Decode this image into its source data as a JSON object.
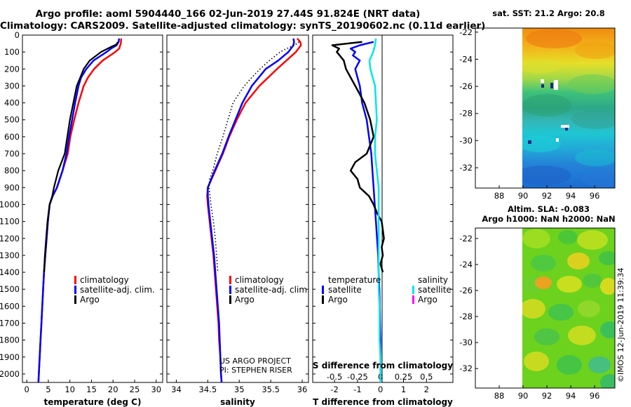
{
  "header": {
    "title_line1": "Argo profile: aoml 5904440_166 02-Jun-2019 27.44S 91.824E (NRT data)",
    "title_line2": "Climatology: CARS2009. Satellite-adjusted climatology: synTS_20190602.nc (0.11d earlier)"
  },
  "colors": {
    "climatology": "#ff0000",
    "satellite": "#0000ff",
    "argo": "#000000",
    "sal_satellite": "#00e5ee",
    "sal_argo": "#ff00ff"
  },
  "depth_axis": {
    "ylim": [
      0,
      2050
    ],
    "ticks": [
      0,
      100,
      200,
      300,
      400,
      500,
      600,
      700,
      800,
      900,
      1000,
      1100,
      1200,
      1300,
      1400,
      1500,
      1600,
      1700,
      1800,
      1900,
      2000
    ]
  },
  "chart_data": [
    {
      "type": "line",
      "title": "temperature",
      "xlabel": "temperature (deg C)",
      "xlim": [
        -1,
        31.5
      ],
      "xticks": [
        0,
        5,
        10,
        15,
        20,
        25,
        30
      ],
      "legend": [
        "climatology",
        "satellite-adj. clim.",
        "Argo"
      ],
      "series": [
        {
          "name": "climatology",
          "color": "#ff0000",
          "depth": [
            20,
            50,
            80,
            100,
            150,
            200,
            250,
            300,
            400,
            500,
            600,
            700,
            800,
            900,
            950,
            1000,
            1100,
            1200,
            1300,
            1400,
            1500,
            1600,
            1700,
            1800,
            1900,
            2000,
            2050
          ],
          "values": [
            21.9,
            21.8,
            21.4,
            20.5,
            17.6,
            15.6,
            14.2,
            13.2,
            12.0,
            11.0,
            10.1,
            9.5,
            8.3,
            7.0,
            6.0,
            5.3,
            4.9,
            4.6,
            4.3,
            4.0,
            3.8,
            3.6,
            3.4,
            3.2,
            3.0,
            2.8,
            2.7
          ]
        },
        {
          "name": "satellite-adj. clim.",
          "color": "#0000ff",
          "depth": [
            20,
            40,
            60,
            80,
            100,
            150,
            200,
            250,
            300,
            400,
            500,
            600,
            700,
            800,
            900,
            950,
            1000,
            1100,
            1200,
            1300,
            1400,
            1500,
            1600,
            1700,
            1800,
            1900,
            2000,
            2050
          ],
          "values": [
            21.4,
            21.3,
            20.8,
            19.5,
            18.5,
            15.5,
            13.8,
            12.6,
            12.0,
            11.2,
            10.5,
            9.8,
            9.2,
            8.3,
            7.0,
            6.0,
            5.3,
            4.9,
            4.6,
            4.3,
            4.0,
            3.8,
            3.6,
            3.4,
            3.2,
            3.0,
            2.8,
            2.7
          ]
        },
        {
          "name": "Argo",
          "color": "#000000",
          "depth": [
            40,
            55,
            70,
            100,
            150,
            200,
            250,
            300,
            400,
            500,
            600,
            700,
            800,
            900,
            950,
            1000,
            1100,
            1200,
            1300,
            1400
          ],
          "values": [
            21.1,
            20.8,
            19.5,
            17.2,
            14.6,
            13.2,
            12.4,
            11.6,
            10.8,
            10.0,
            9.4,
            8.8,
            7.3,
            6.3,
            5.9,
            5.3,
            4.8,
            4.5,
            4.2,
            4.0
          ]
        }
      ]
    },
    {
      "type": "line",
      "title": "salinity",
      "xlabel": "salinity",
      "xlim": [
        33.85,
        36.1
      ],
      "xticks": [
        34,
        34.5,
        35,
        35.5,
        36
      ],
      "xtick_labels": [
        "34",
        "34.5",
        "35",
        "35.5",
        "36"
      ],
      "legend": [
        "climatology",
        "satellite-adj. clim.",
        "Argo"
      ],
      "annotation_line1": "US ARGO PROJECT",
      "annotation_line2": "PI: STEPHEN RISER",
      "series": [
        {
          "name": "climatology",
          "color": "#ff0000",
          "depth": [
            20,
            40,
            60,
            100,
            150,
            200,
            300,
            400,
            500,
            600,
            700,
            800,
            900,
            950,
            1000,
            1100,
            1200,
            1300,
            1400,
            1500,
            1600,
            1700,
            1800,
            1900,
            2000,
            2050
          ],
          "values": [
            35.92,
            35.97,
            35.98,
            35.9,
            35.75,
            35.6,
            35.32,
            35.1,
            34.96,
            34.84,
            34.74,
            34.62,
            34.5,
            34.49,
            34.5,
            34.53,
            34.56,
            34.59,
            34.61,
            34.63,
            34.65,
            34.67,
            34.68,
            34.7,
            34.71,
            34.72
          ]
        },
        {
          "name": "satellite-adj. clim.",
          "color": "#0000ff",
          "depth": [
            20,
            40,
            60,
            100,
            150,
            200,
            300,
            400,
            500,
            600,
            700,
            800,
            900,
            950,
            1000,
            1100,
            1200,
            1300,
            1400,
            1500,
            1600,
            1700,
            1800,
            1900,
            2000,
            2050
          ],
          "values": [
            35.86,
            35.87,
            35.86,
            35.78,
            35.62,
            35.42,
            35.2,
            35.05,
            34.94,
            34.83,
            34.73,
            34.61,
            34.5,
            34.5,
            34.51,
            34.54,
            34.57,
            34.6,
            34.62,
            34.64,
            34.66,
            34.68,
            34.69,
            34.7,
            34.71,
            34.72
          ]
        },
        {
          "name": "Argo",
          "color": "#000000",
          "depth": [
            40,
            60,
            80,
            100,
            150,
            200,
            250,
            300,
            400,
            500,
            600,
            700,
            800,
            850,
            900,
            1000,
            1100,
            1200,
            1300,
            1400
          ],
          "values": [
            35.95,
            35.88,
            35.75,
            35.65,
            35.48,
            35.33,
            35.2,
            35.08,
            34.9,
            34.82,
            34.74,
            34.65,
            34.58,
            34.53,
            34.52,
            34.55,
            34.59,
            34.62,
            34.64,
            34.66
          ]
        }
      ]
    },
    {
      "type": "line",
      "title": "difference from climatology",
      "xlabel": "T difference from climatology",
      "s_xlabel": "S difference from climatology",
      "xlim": [
        -2.95,
        3.15
      ],
      "xticks": [
        -2,
        -1,
        0,
        1,
        2
      ],
      "s_xticks": [
        -0.5,
        -0.25,
        0,
        0.25,
        0.5
      ],
      "s_xtick_labels": [
        "-0.5",
        "-0.25",
        "0",
        "0.25",
        "0.5"
      ],
      "legend_temperature_title": "temperature",
      "legend_salinity_title": "salinity",
      "legend_entries": [
        "satellite",
        "Argo",
        "satellite",
        "Argo"
      ],
      "series": [
        {
          "name": "temperature satellite",
          "color": "#0000ff",
          "depth": [
            40,
            60,
            80,
            100,
            120,
            150,
            200,
            250,
            300,
            400,
            500,
            600,
            700,
            800,
            900,
            1000,
            1100,
            1200,
            1300,
            1400,
            1500,
            1600,
            1700,
            1800,
            1900,
            2000,
            2050
          ],
          "values": [
            -0.3,
            -0.9,
            -1.3,
            -1.1,
            -1.2,
            -0.9,
            -1.1,
            -1.0,
            -0.9,
            -0.8,
            -0.6,
            -0.5,
            -0.4,
            -0.35,
            -0.3,
            -0.25,
            -0.2,
            -0.15,
            -0.1,
            -0.08,
            -0.05,
            -0.03,
            -0.02,
            0,
            0,
            0,
            0
          ]
        },
        {
          "name": "temperature Argo",
          "color": "#000000",
          "depth": [
            40,
            60,
            80,
            100,
            150,
            200,
            250,
            300,
            400,
            500,
            600,
            700,
            750,
            800,
            850,
            900,
            950,
            1000,
            1050,
            1100,
            1150,
            1200,
            1250,
            1300,
            1350,
            1400
          ],
          "values": [
            -0.8,
            -2.1,
            -1.8,
            -1.9,
            -1.6,
            -1.5,
            -1.3,
            -1.1,
            -0.7,
            -0.45,
            -0.3,
            -0.6,
            -1.1,
            -1.3,
            -1.0,
            -0.9,
            -0.5,
            -0.3,
            -0.15,
            0.05,
            0.1,
            0.15,
            0.05,
            0.1,
            0.0,
            0.1
          ]
        },
        {
          "name": "salinity satellite",
          "color": "#00e5ee",
          "depth": [
            20,
            60,
            100,
            150,
            200,
            300,
            400,
            500,
            600,
            700,
            800,
            900,
            1000,
            1100,
            1200,
            1300,
            1400,
            1500,
            1600,
            1700,
            1800,
            1900,
            2000,
            2050
          ],
          "values": [
            -0.05,
            -0.06,
            -0.08,
            -0.12,
            -0.11,
            -0.06,
            -0.05,
            -0.04,
            -0.06,
            -0.06,
            -0.04,
            -0.02,
            -0.02,
            -0.02,
            -0.02,
            -0.02,
            -0.02,
            -0.02,
            -0.01,
            -0.01,
            -0.01,
            0,
            0,
            0
          ]
        },
        {
          "name": "salinity Argo",
          "color": "#ff00ff",
          "depth": [],
          "values": []
        }
      ]
    },
    {
      "type": "heatmap",
      "title": "sat. SST: 21.2 Argo: 20.8",
      "xlim": [
        86,
        97.7
      ],
      "ylim": [
        -33.5,
        -21.7
      ],
      "xticks": [
        88,
        90,
        92,
        94,
        96
      ],
      "yticks": [
        -22,
        -24,
        -26,
        -28,
        -30,
        -32
      ],
      "data_start_lon": 90
    },
    {
      "type": "heatmap",
      "title": "Altim. SLA: -0.083",
      "subtitle": "Argo h1000: NaN h2000: NaN",
      "xlim": [
        86,
        97.7
      ],
      "ylim": [
        -33.5,
        -21.2
      ],
      "xticks": [
        88,
        90,
        92,
        94,
        96
      ],
      "yticks": [
        -22,
        -24,
        -26,
        -28,
        -30,
        -32
      ],
      "data_start_lon": 90
    }
  ],
  "credit": "©IMOS 12-Jun-2019 11:39:34"
}
